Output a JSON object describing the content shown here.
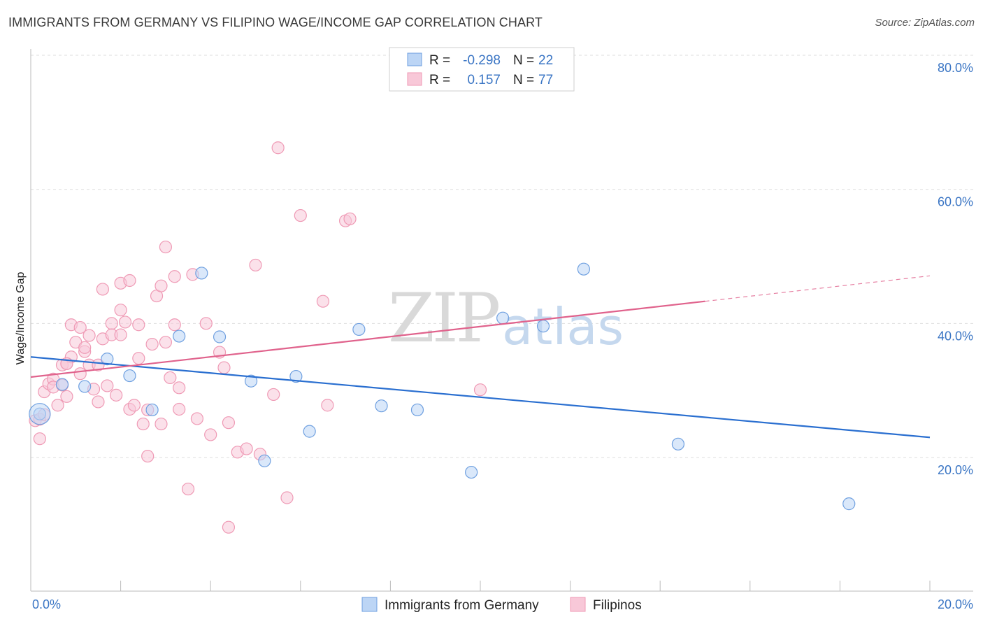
{
  "header": {
    "title": "IMMIGRANTS FROM GERMANY VS FILIPINO WAGE/INCOME GAP CORRELATION CHART",
    "source": "Source: ZipAtlas.com"
  },
  "watermark": {
    "zip": "ZIP",
    "atlas": "atlas"
  },
  "legend": {
    "rows": [
      {
        "r_label": "R =",
        "r_value": "-0.298",
        "n_label": "N =",
        "n_value": "22",
        "color": "#a8c8f0"
      },
      {
        "r_label": "R =",
        "r_value": "0.157",
        "n_label": "N =",
        "n_value": "77",
        "color": "#f5b8cc"
      }
    ]
  },
  "bottom_legend": [
    {
      "label": "Immigrants from Germany",
      "color": "#a8c8f0"
    },
    {
      "label": "Filipinos",
      "color": "#f5b8cc"
    }
  ],
  "chart_data": {
    "type": "scatter",
    "title": "IMMIGRANTS FROM GERMANY VS FILIPINO WAGE/INCOME GAP CORRELATION CHART",
    "xlabel": "",
    "ylabel": "Wage/Income Gap",
    "xlim": [
      0,
      20
    ],
    "ylim": [
      0,
      82
    ],
    "x_tick_labels": [
      "0.0%",
      "20.0%"
    ],
    "y_ticks": [
      20,
      40,
      60,
      80
    ],
    "y_tick_labels": [
      "20.0%",
      "40.0%",
      "60.0%",
      "80.0%"
    ],
    "series": [
      {
        "name": "Immigrants from Germany",
        "color": "#6fa0e0",
        "fill": "#bcd5f5",
        "trend": {
          "x0": 0,
          "y0": 35.0,
          "x1": 20,
          "y1": 23.0,
          "color": "#2a6fd0"
        },
        "points": [
          [
            0.2,
            26.5
          ],
          [
            0.7,
            30.9
          ],
          [
            1.2,
            30.6
          ],
          [
            1.7,
            34.7
          ],
          [
            2.2,
            32.2
          ],
          [
            2.7,
            27.1
          ],
          [
            3.3,
            38.1
          ],
          [
            3.8,
            47.5
          ],
          [
            4.2,
            38.0
          ],
          [
            4.9,
            31.4
          ],
          [
            5.2,
            19.5
          ],
          [
            5.9,
            32.1
          ],
          [
            6.2,
            23.9
          ],
          [
            7.3,
            39.1
          ],
          [
            7.8,
            27.7
          ],
          [
            8.6,
            27.1
          ],
          [
            9.8,
            17.8
          ],
          [
            10.5,
            40.8
          ],
          [
            11.4,
            39.6
          ],
          [
            12.3,
            48.1
          ],
          [
            14.4,
            22.0
          ],
          [
            18.2,
            13.1
          ]
        ],
        "big_point": [
          0.2,
          26.5
        ]
      },
      {
        "name": "Filipinos",
        "color": "#ef9ab5",
        "fill": "#f8c8d8",
        "trend": {
          "x0": 0,
          "y0": 32.0,
          "x1": 15.0,
          "y1": 43.3,
          "color": "#e0628c"
        },
        "trend_dashed": {
          "x0": 15.0,
          "y0": 43.3,
          "x1": 20,
          "y1": 47.1
        },
        "points": [
          [
            0.1,
            25.5
          ],
          [
            0.2,
            25.7
          ],
          [
            0.2,
            22.8
          ],
          [
            0.3,
            29.8
          ],
          [
            0.3,
            26.4
          ],
          [
            0.4,
            31.0
          ],
          [
            0.5,
            31.7
          ],
          [
            0.5,
            30.5
          ],
          [
            0.6,
            27.8
          ],
          [
            0.7,
            33.8
          ],
          [
            0.7,
            30.8
          ],
          [
            0.8,
            29.1
          ],
          [
            0.8,
            34.0
          ],
          [
            0.9,
            39.8
          ],
          [
            0.9,
            35.0
          ],
          [
            1.0,
            37.2
          ],
          [
            1.1,
            32.5
          ],
          [
            1.1,
            39.4
          ],
          [
            1.2,
            35.8
          ],
          [
            1.2,
            36.4
          ],
          [
            1.3,
            33.8
          ],
          [
            1.3,
            38.2
          ],
          [
            1.4,
            30.2
          ],
          [
            1.5,
            28.3
          ],
          [
            1.5,
            33.8
          ],
          [
            1.6,
            37.7
          ],
          [
            1.6,
            45.1
          ],
          [
            1.7,
            30.7
          ],
          [
            1.8,
            40.0
          ],
          [
            1.8,
            38.3
          ],
          [
            1.9,
            29.3
          ],
          [
            2.0,
            38.3
          ],
          [
            2.0,
            42.0
          ],
          [
            2.0,
            46.0
          ],
          [
            2.1,
            40.2
          ],
          [
            2.2,
            27.2
          ],
          [
            2.2,
            46.4
          ],
          [
            2.3,
            27.8
          ],
          [
            2.4,
            39.8
          ],
          [
            2.4,
            34.8
          ],
          [
            2.5,
            25.0
          ],
          [
            2.6,
            27.1
          ],
          [
            2.6,
            20.2
          ],
          [
            2.7,
            36.9
          ],
          [
            2.8,
            44.1
          ],
          [
            2.9,
            45.6
          ],
          [
            2.9,
            25.0
          ],
          [
            3.0,
            51.4
          ],
          [
            3.0,
            37.2
          ],
          [
            3.1,
            31.9
          ],
          [
            3.2,
            39.8
          ],
          [
            3.2,
            47.0
          ],
          [
            3.3,
            30.4
          ],
          [
            3.3,
            27.2
          ],
          [
            3.5,
            15.3
          ],
          [
            3.6,
            47.3
          ],
          [
            3.7,
            25.8
          ],
          [
            3.9,
            40.0
          ],
          [
            4.0,
            23.4
          ],
          [
            4.2,
            35.7
          ],
          [
            4.3,
            33.4
          ],
          [
            4.4,
            9.6
          ],
          [
            4.4,
            25.2
          ],
          [
            4.6,
            20.8
          ],
          [
            4.8,
            21.3
          ],
          [
            5.0,
            48.7
          ],
          [
            5.1,
            20.5
          ],
          [
            5.4,
            29.4
          ],
          [
            5.5,
            66.2
          ],
          [
            5.7,
            14.0
          ],
          [
            6.0,
            56.1
          ],
          [
            6.5,
            43.3
          ],
          [
            6.6,
            27.8
          ],
          [
            7.0,
            55.3
          ],
          [
            7.1,
            55.6
          ],
          [
            10.0,
            30.1
          ],
          [
            0.8,
            34.0
          ]
        ]
      }
    ]
  }
}
